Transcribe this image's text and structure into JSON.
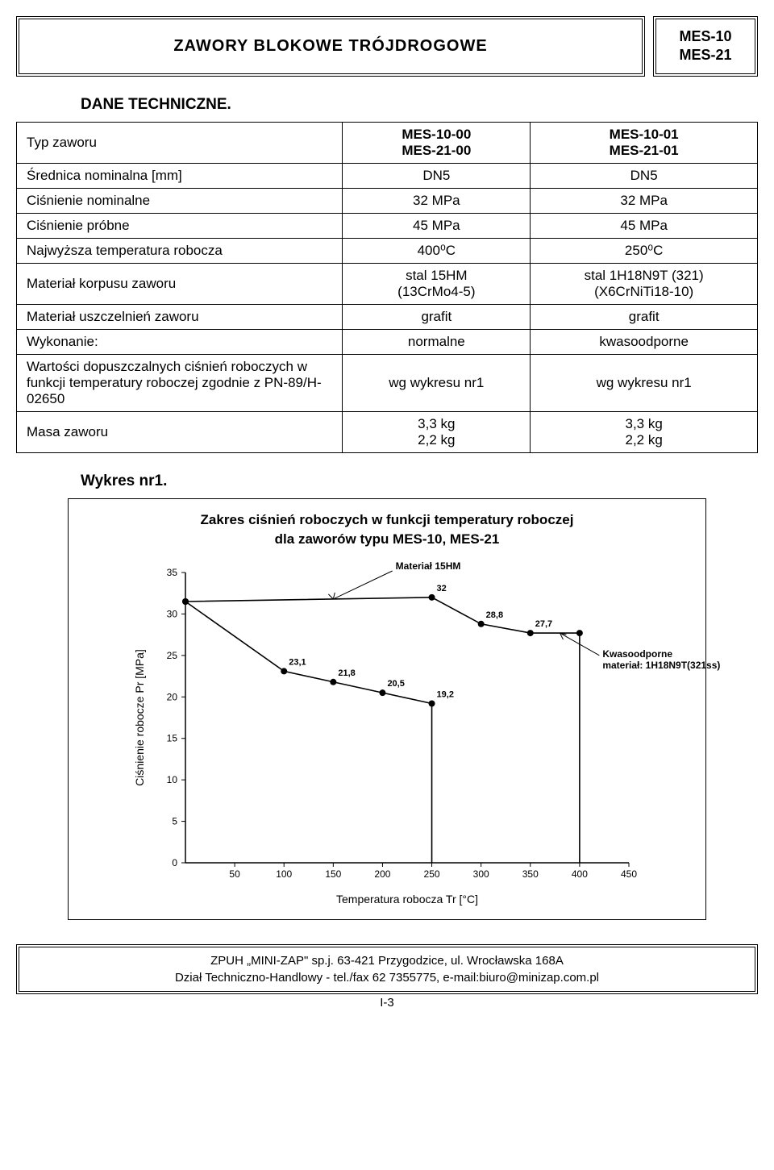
{
  "header": {
    "title": "ZAWORY BLOKOWE TRÓJDROGOWE",
    "codes": [
      "MES-10",
      "MES-21"
    ]
  },
  "section_title": "DANE TECHNICZNE.",
  "table": {
    "col1_h1": "MES-10-00",
    "col1_h2": "MES-21-00",
    "col2_h1": "MES-10-01",
    "col2_h2": "MES-21-01",
    "rows": [
      {
        "label": "Typ zaworu",
        "isHeader": true
      },
      {
        "label": "Średnica nominalna [mm]",
        "v1": "DN5",
        "v2": "DN5"
      },
      {
        "label": "Ciśnienie nominalne",
        "v1": "32 MPa",
        "v2": "32 MPa"
      },
      {
        "label": "Ciśnienie próbne",
        "v1": "45 MPa",
        "v2": "45 MPa"
      },
      {
        "label": "Najwyższa temperatura robocza",
        "v1": "400⁰C",
        "v2": "250⁰C"
      },
      {
        "label": "Materiał korpusu zaworu",
        "v1": "stal 15HM\n(13CrMo4-5)",
        "v2": "stal 1H18N9T (321)\n(X6CrNiTi18-10)"
      },
      {
        "label": "Materiał uszczelnień zaworu",
        "v1": "grafit",
        "v2": "grafit"
      },
      {
        "label": "Wykonanie:",
        "v1": "normalne",
        "v2": "kwasoodporne"
      },
      {
        "label": "Wartości dopuszczalnych ciśnień roboczych w funkcji temperatury roboczej zgodnie z PN-89/H-02650",
        "v1": "wg wykresu nr1",
        "v2": "wg wykresu nr1"
      },
      {
        "label": "Masa zaworu",
        "v1": "3,3 kg\n2,2 kg",
        "v2": "3,3 kg\n2,2 kg"
      }
    ]
  },
  "chart_label": "Wykres nr1.",
  "chart": {
    "type": "line",
    "title_l1": "Zakres ciśnień roboczych w funkcji temperatury roboczej",
    "title_l2": "dla zaworów typu MES-10, MES-21",
    "xlabel": "Temperatura robocza Tr [°C]",
    "ylabel": "Ciśnienie robocze Pr [MPa]",
    "xlim": [
      0,
      450
    ],
    "ylim": [
      0,
      35
    ],
    "xticks": [
      50,
      100,
      150,
      200,
      250,
      300,
      350,
      400,
      450
    ],
    "yticks": [
      0,
      5,
      10,
      15,
      20,
      25,
      30,
      35
    ],
    "series1": {
      "points": [
        [
          0,
          31.5
        ],
        [
          100,
          23.1
        ],
        [
          150,
          21.8
        ],
        [
          200,
          20.5
        ],
        [
          250,
          19.2
        ],
        [
          250,
          0
        ]
      ],
      "labels": [
        null,
        "23,1",
        "21,8",
        "20,5",
        "19,2",
        null
      ]
    },
    "series2": {
      "points": [
        [
          0,
          31.5
        ],
        [
          250,
          32
        ],
        [
          300,
          28.8
        ],
        [
          350,
          27.7
        ],
        [
          400,
          27.7
        ],
        [
          400,
          0
        ]
      ],
      "labels": [
        null,
        "32",
        "28,8",
        "27,7",
        null,
        null
      ]
    },
    "callout1": "Materiał 15HM",
    "callout2_l1": "Kwasoodporne",
    "callout2_l2": "materiał: 1H18N9T(321ss)",
    "line_color": "#000000",
    "bg": "#ffffff",
    "axis_fontsize": 12,
    "label_fontsize": 11,
    "marker_radius": 4,
    "line_width": 1.6
  },
  "footer": {
    "l1": "ZPUH „MINI-ZAP\" sp.j. 63-421 Przygodzice, ul. Wrocławska 168A",
    "l2": "Dział Techniczno-Handlowy - tel./fax 62 7355775, e-mail:biuro@minizap.com.pl"
  },
  "page": "I-3"
}
